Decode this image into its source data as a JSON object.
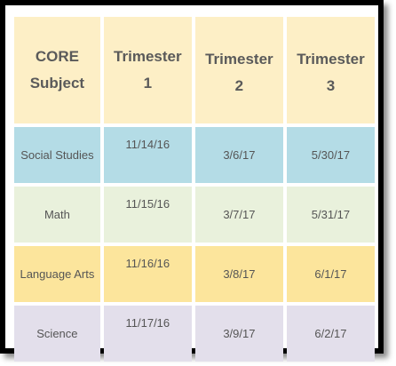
{
  "colors": {
    "header_bg": "#fdefc6",
    "social_studies_bg": "#b4dce6",
    "math_bg": "#e9f1dc",
    "language_arts_bg": "#fce59c",
    "science_bg": "#e3dfeb",
    "frame": "#000000"
  },
  "header": {
    "subject_line1": "CORE",
    "subject_line2": "Subject",
    "t1_line1": "Trimester",
    "t1_line2": "1",
    "t2_line1": "Trimester",
    "t2_line2": "2",
    "t3_line1": "Trimester",
    "t3_line2": "3"
  },
  "rows": [
    {
      "subject": "Social Studies",
      "t1": "11/14/16",
      "t2": "3/6/17",
      "t3": "5/30/17"
    },
    {
      "subject": "Math",
      "t1": "11/15/16",
      "t2": "3/7/17",
      "t3": "5/31/17"
    },
    {
      "subject": "Language Arts",
      "t1": "11/16/16",
      "t2": "3/8/17",
      "t3": "6/1/17"
    },
    {
      "subject": "Science",
      "t1": "11/17/16",
      "t2": "3/9/17",
      "t3": "6/2/17"
    }
  ]
}
